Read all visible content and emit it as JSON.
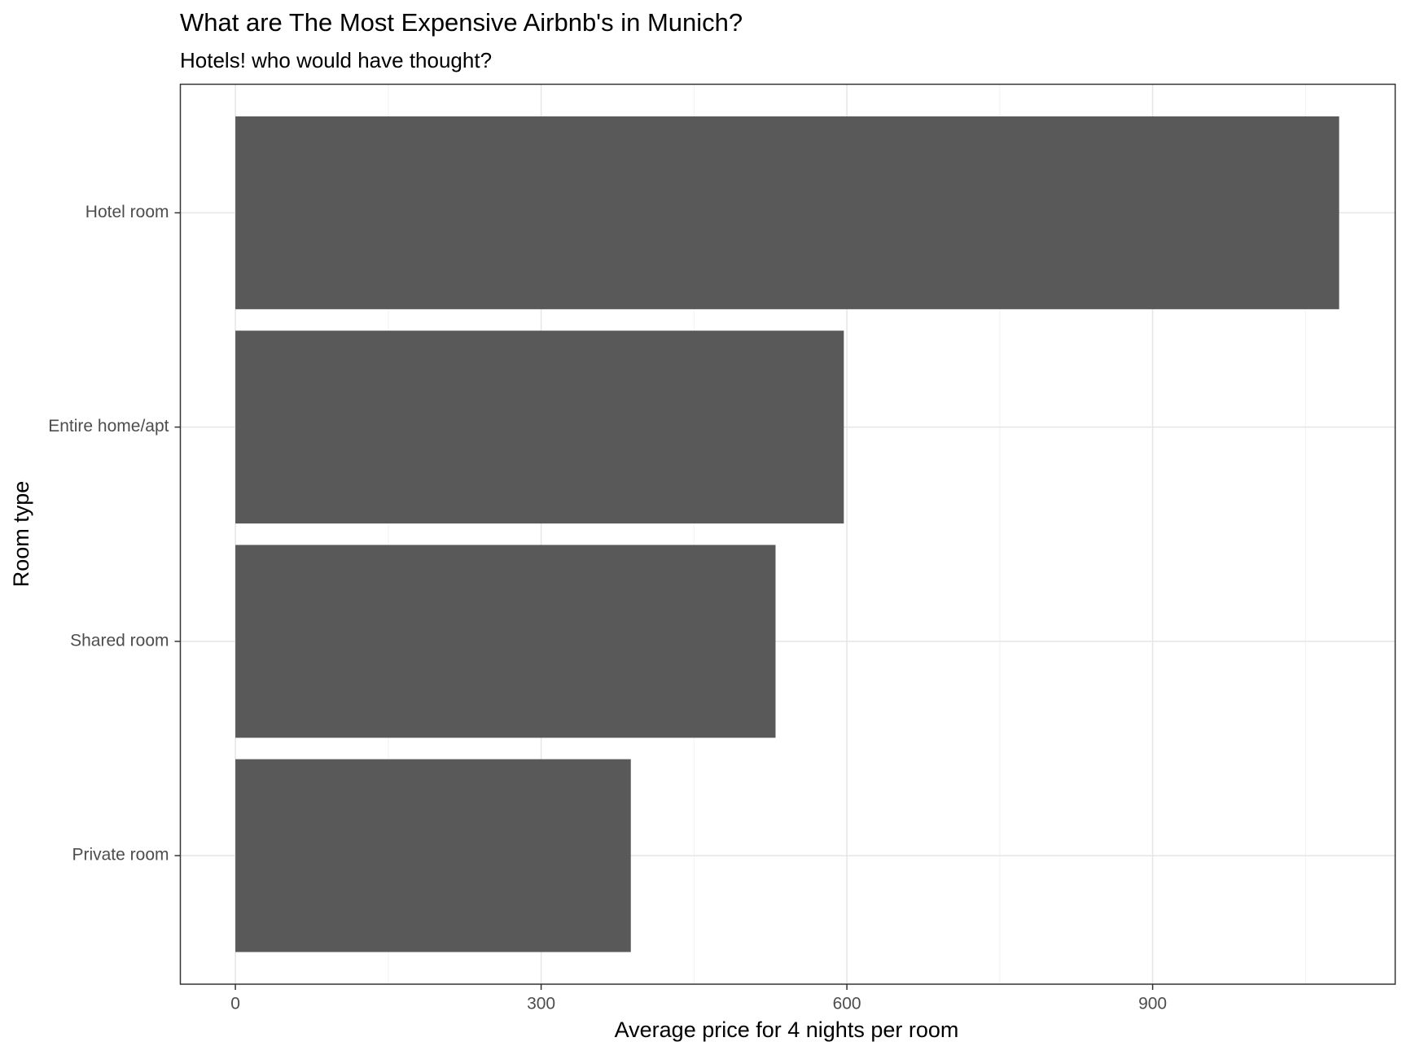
{
  "chart_data": {
    "type": "hbar",
    "title": "What are The Most Expensive Airbnb's in Munich?",
    "subtitle": "Hotels! who would have thought?",
    "x_label": "Average price for 4 nights per room",
    "y_label": "Room type",
    "categories": [
      "Hotel room",
      "Entire home/apt",
      "Shared room",
      "Private room"
    ],
    "values": [
      1083,
      597,
      530,
      388
    ],
    "color": "#595959",
    "xlim": [
      -54,
      1138
    ],
    "xticks": [
      0,
      300,
      600,
      900
    ],
    "x_minor_grid": [
      150,
      450,
      750,
      1050
    ],
    "grid": true
  }
}
